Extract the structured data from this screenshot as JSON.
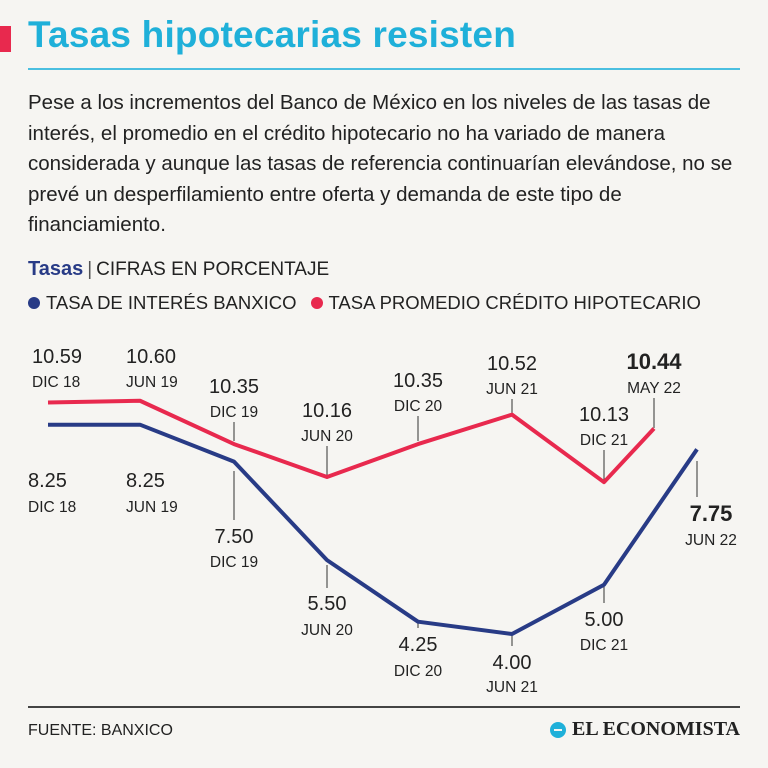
{
  "header": {
    "title": "Tasas hipotecarias resisten",
    "intro": "Pese a los incrementos del Banco de México en los niveles de las tasas de interés, el promedio en el crédito hipotecario no ha variado de manera considerada y aunque las tasas de referencia continuarían elevándose, no se prevé un desperfilamiento entre oferta y demanda de este tipo de financiamiento."
  },
  "chart_head": {
    "label": "Tasas",
    "separator": "|",
    "unit": "CIFRAS EN PORCENTAJE"
  },
  "colors": {
    "banxico": "#283b86",
    "hipotecario": "#e8294e",
    "title": "#1fb0d9"
  },
  "chart_data": {
    "type": "line",
    "title": "Tasas",
    "subtitle": "CIFRAS EN PORCENTAJE",
    "series": [
      {
        "name": "TASA DE INTERÉS BANXICO",
        "color": "#283b86",
        "points": [
          {
            "value": 8.25,
            "label": "8.25",
            "date": "DIC 18"
          },
          {
            "value": 8.25,
            "label": "8.25",
            "date": "JUN 19"
          },
          {
            "value": 7.5,
            "label": "7.50",
            "date": "DIC 19"
          },
          {
            "value": 5.5,
            "label": "5.50",
            "date": "JUN 20"
          },
          {
            "value": 4.25,
            "label": "4.25",
            "date": "DIC 20"
          },
          {
            "value": 4.0,
            "label": "4.00",
            "date": "JUN 21"
          },
          {
            "value": 5.0,
            "label": "5.00",
            "date": "DIC 21"
          },
          {
            "value": 7.75,
            "label": "7.75",
            "date": "JUN 22",
            "highlight": true
          }
        ]
      },
      {
        "name": "TASA PROMEDIO CRÉDITO HIPOTECARIO",
        "color": "#e8294e",
        "points": [
          {
            "value": 10.59,
            "label": "10.59",
            "date": "DIC 18"
          },
          {
            "value": 10.6,
            "label": "10.60",
            "date": "JUN 19"
          },
          {
            "value": 10.35,
            "label": "10.35",
            "date": "DIC 19"
          },
          {
            "value": 10.16,
            "label": "10.16",
            "date": "JUN 20"
          },
          {
            "value": 10.35,
            "label": "10.35",
            "date": "DIC 20"
          },
          {
            "value": 10.52,
            "label": "10.52",
            "date": "JUN 21"
          },
          {
            "value": 10.13,
            "label": "10.13",
            "date": "DIC 21"
          },
          {
            "value": 10.44,
            "label": "10.44",
            "date": "MAY 22",
            "highlight": true
          }
        ]
      }
    ]
  },
  "footer": {
    "source": "FUENTE: BANXICO",
    "brand": "EL ECONOMISTA"
  }
}
